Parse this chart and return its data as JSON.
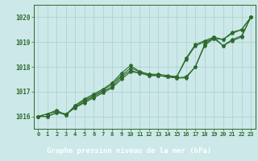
{
  "x": [
    0,
    1,
    2,
    3,
    4,
    5,
    6,
    7,
    8,
    9,
    10,
    11,
    12,
    13,
    14,
    15,
    16,
    17,
    18,
    19,
    20,
    21,
    22,
    23
  ],
  "line1": [
    1016.0,
    1016.0,
    1016.15,
    1016.1,
    1016.35,
    1016.55,
    1016.75,
    1016.95,
    1017.15,
    1017.5,
    1017.8,
    1017.75,
    1017.65,
    1017.65,
    1017.6,
    1017.55,
    1017.55,
    1018.0,
    1018.85,
    1019.15,
    1018.85,
    1019.05,
    1019.2,
    1020.0
  ],
  "line2": [
    1016.0,
    1016.0,
    1016.15,
    1016.1,
    1016.35,
    1016.6,
    1016.8,
    1017.0,
    1017.2,
    1017.6,
    1017.85,
    1017.75,
    1017.65,
    1017.65,
    1017.6,
    1017.55,
    1017.6,
    1018.0,
    1018.9,
    1019.2,
    1018.85,
    1019.1,
    1019.25,
    1020.0
  ],
  "line3": [
    1016.0,
    1016.1,
    1016.2,
    1016.05,
    1016.4,
    1016.65,
    1016.85,
    1017.05,
    1017.3,
    1017.65,
    1017.95,
    1017.8,
    1017.7,
    1017.65,
    1017.6,
    1017.6,
    1018.3,
    1018.85,
    1019.0,
    1019.15,
    1019.1,
    1019.35,
    1019.5,
    1020.0
  ],
  "line4": [
    1016.0,
    1016.1,
    1016.25,
    1016.05,
    1016.45,
    1016.7,
    1016.9,
    1017.1,
    1017.35,
    1017.75,
    1018.05,
    1017.8,
    1017.7,
    1017.7,
    1017.65,
    1017.6,
    1018.35,
    1018.9,
    1019.05,
    1019.2,
    1019.1,
    1019.4,
    1019.5,
    1020.0
  ],
  "line_color": "#2d6a2d",
  "bg_color": "#cce8e8",
  "plot_bg_color": "#cce8e8",
  "label_bg_color": "#4a8a6a",
  "grid_color": "#aacfcf",
  "xlabel": "Graphe pression niveau de la mer (hPa)",
  "xlabel_color": "#ffffff",
  "tick_color": "#1a4a1a",
  "ylim": [
    1015.5,
    1020.5
  ],
  "yticks": [
    1016,
    1017,
    1018,
    1019,
    1020
  ],
  "xticks": [
    0,
    1,
    2,
    3,
    4,
    5,
    6,
    7,
    8,
    9,
    10,
    11,
    12,
    13,
    14,
    15,
    16,
    17,
    18,
    19,
    20,
    21,
    22,
    23
  ],
  "marker": "*",
  "marker_size": 3,
  "line_width": 0.8
}
